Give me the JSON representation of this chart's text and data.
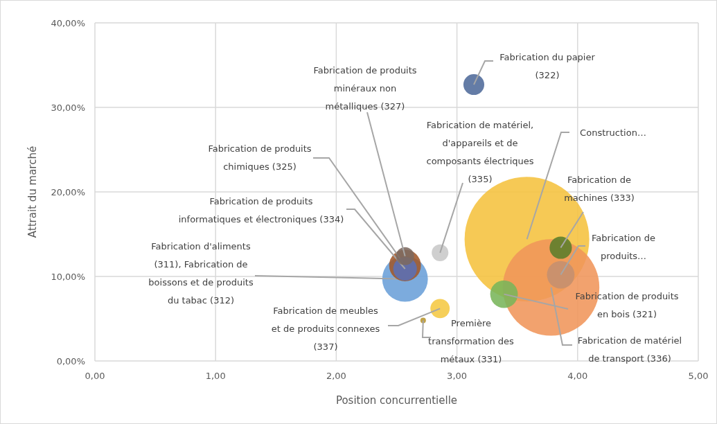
{
  "chart_data": {
    "type": "bubble",
    "xlabel": "Position concurrentielle",
    "ylabel": "Attrait du marché",
    "xlim": [
      0,
      5
    ],
    "xticks": [
      {
        "value": 0,
        "label": "0,00"
      },
      {
        "value": 1,
        "label": "1,00"
      },
      {
        "value": 2,
        "label": "2,00"
      },
      {
        "value": 3,
        "label": "3,00"
      },
      {
        "value": 4,
        "label": "4,00"
      },
      {
        "value": 5,
        "label": "5,00"
      }
    ],
    "ylim": [
      0,
      40
    ],
    "yticks": [
      {
        "value": 0,
        "label": "0,00%"
      },
      {
        "value": 10,
        "label": "10,00%"
      },
      {
        "value": 20,
        "label": "20,00%"
      },
      {
        "value": 30,
        "label": "30,00%"
      },
      {
        "value": 40,
        "label": "40,00%"
      }
    ],
    "grid": true,
    "series": [
      {
        "name": "Fabrication du papier (322)",
        "color": "#4e6a9a",
        "x": [
          3.14
        ],
        "values": [
          32.7
        ],
        "sizes": [
          0.028
        ]
      },
      {
        "name": "Fabrication de produits minéraux non métalliques (327)",
        "color": "#7d6a60",
        "x": [
          2.57
        ],
        "values": [
          12.4
        ],
        "sizes": [
          0.021
        ]
      },
      {
        "name": "Fabrication de produits chimiques (325)",
        "color": "#a0582a",
        "x": [
          2.57
        ],
        "values": [
          11.3
        ],
        "sizes": [
          0.065
        ]
      },
      {
        "name": "Fabrication de produits informatiques et électroniques (334)",
        "color": "#5b6fb5",
        "x": [
          2.57
        ],
        "values": [
          10.9
        ],
        "sizes": [
          0.036
        ]
      },
      {
        "name": "Fabrication d'aliments (311), Fabrication de boissons et de produits du tabac (312)",
        "color": "#6a9fd8",
        "x": [
          2.57
        ],
        "values": [
          9.7
        ],
        "sizes": [
          0.134
        ]
      },
      {
        "name": "Fabrication de meubles et de produits connexes (337)",
        "color": "#f5c842",
        "x": [
          2.86
        ],
        "values": [
          6.2
        ],
        "sizes": [
          0.024
        ]
      },
      {
        "name": "Première transformation des métaux (331)",
        "color": "#b8952e",
        "x": [
          2.72
        ],
        "values": [
          4.8
        ],
        "sizes": [
          0.002
        ]
      },
      {
        "name": "Fabrication de matériel, d'appareils et de composants électriques (335)",
        "color": "#c8c8c8",
        "x": [
          2.86
        ],
        "values": [
          12.8
        ],
        "sizes": [
          0.018
        ]
      },
      {
        "name": "Construction…",
        "color": "#f5c23e",
        "x": [
          3.58
        ],
        "values": [
          14.4
        ],
        "sizes": [
          1
        ]
      },
      {
        "name": "Fabrication de machines (333)",
        "color": "#5a7d2a",
        "x": [
          3.86
        ],
        "values": [
          13.4
        ],
        "sizes": [
          0.032
        ]
      },
      {
        "name": "Fabrication de produits…",
        "color": "#c49070",
        "x": [
          3.86
        ],
        "values": [
          10.2
        ],
        "sizes": [
          0.049
        ]
      },
      {
        "name": "Fabrication de produits en bois (321)",
        "color": "#79b55a",
        "x": [
          3.39
        ],
        "values": [
          7.9
        ],
        "sizes": [
          0.049
        ]
      },
      {
        "name": "Fabrication de matériel de transport (336)",
        "color": "#f0955a",
        "x": [
          3.78
        ],
        "values": [
          8.7
        ],
        "sizes": [
          0.6
        ]
      }
    ]
  }
}
